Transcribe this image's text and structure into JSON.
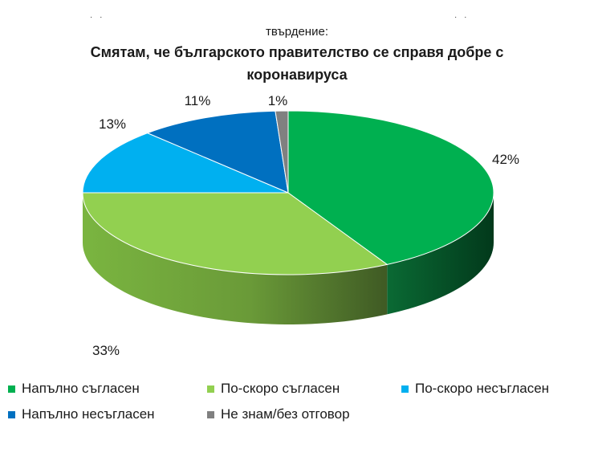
{
  "chart_data": {
    "type": "pie",
    "subtitle": "твърдение:",
    "title": "Смятам, че българското правителство се справя добре с коронавируса",
    "slices": [
      {
        "label": "Напълно съгласен",
        "value": 42,
        "display": "42%",
        "color": "#00b050"
      },
      {
        "label": "По-скоро съгласен",
        "value": 33,
        "display": "33%",
        "color": "#92d050"
      },
      {
        "label": "По-скоро несъгласен",
        "value": 13,
        "display": "13%",
        "color": "#00b0f0"
      },
      {
        "label": "Напълно несъгласен",
        "value": 11,
        "display": "11%",
        "color": "#0070c0"
      },
      {
        "label": "Не знам/без отговор",
        "value": 1,
        "display": "1%",
        "color": "#808080"
      }
    ],
    "legend_position": "bottom",
    "style": "3d"
  }
}
